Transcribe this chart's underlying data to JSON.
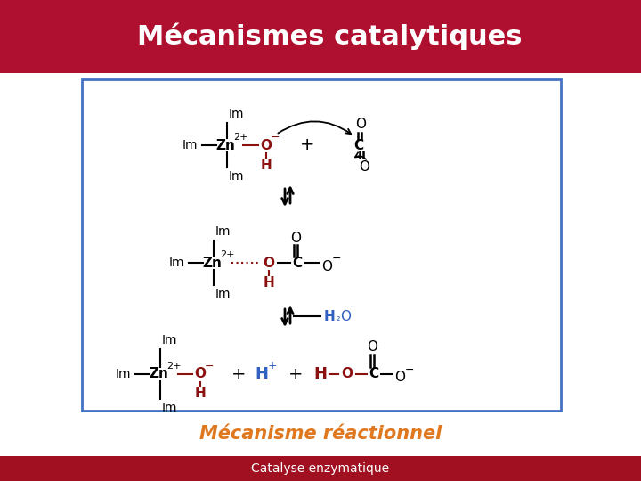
{
  "title": "Mécanismes catalytiques",
  "subtitle": "Mécanisme réactionnel",
  "footer": "Catalyse enzymatique",
  "title_bg": "#B01030",
  "title_color": "#FFFFFF",
  "footer_bg": "#A01020",
  "footer_color": "#FFFFFF",
  "subtitle_color": "#E07820",
  "box_bg": "#FFFFFF",
  "box_border": "#4472C4",
  "main_bg": "#FFFFFF",
  "title_fontsize": 22,
  "subtitle_fontsize": 15,
  "footer_fontsize": 10,
  "BLACK": "#000000",
  "RED": "#8B1010",
  "BLUE": "#3060C0"
}
